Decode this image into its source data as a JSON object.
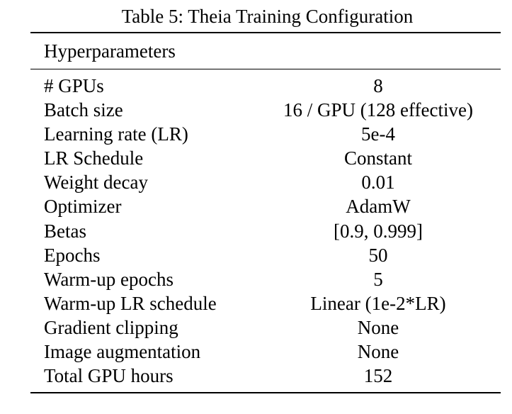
{
  "caption": "Table 5: Theia Training Configuration",
  "header": {
    "column_1": "Hyperparameters"
  },
  "rows": [
    {
      "name": "# GPUs",
      "value": "8"
    },
    {
      "name": "Batch size",
      "value": "16 / GPU (128 effective)"
    },
    {
      "name": "Learning rate (LR)",
      "value": "5e-4"
    },
    {
      "name": "LR Schedule",
      "value": "Constant"
    },
    {
      "name": "Weight decay",
      "value": "0.01"
    },
    {
      "name": "Optimizer",
      "value": "AdamW"
    },
    {
      "name": "Betas",
      "value": "[0.9, 0.999]"
    },
    {
      "name": "Epochs",
      "value": "50"
    },
    {
      "name": "Warm-up epochs",
      "value": "5"
    },
    {
      "name": "Warm-up LR schedule",
      "value": "Linear (1e-2*LR)"
    },
    {
      "name": "Gradient clipping",
      "value": "None"
    },
    {
      "name": "Image augmentation",
      "value": "None"
    },
    {
      "name": "Total GPU hours",
      "value": "152"
    }
  ]
}
